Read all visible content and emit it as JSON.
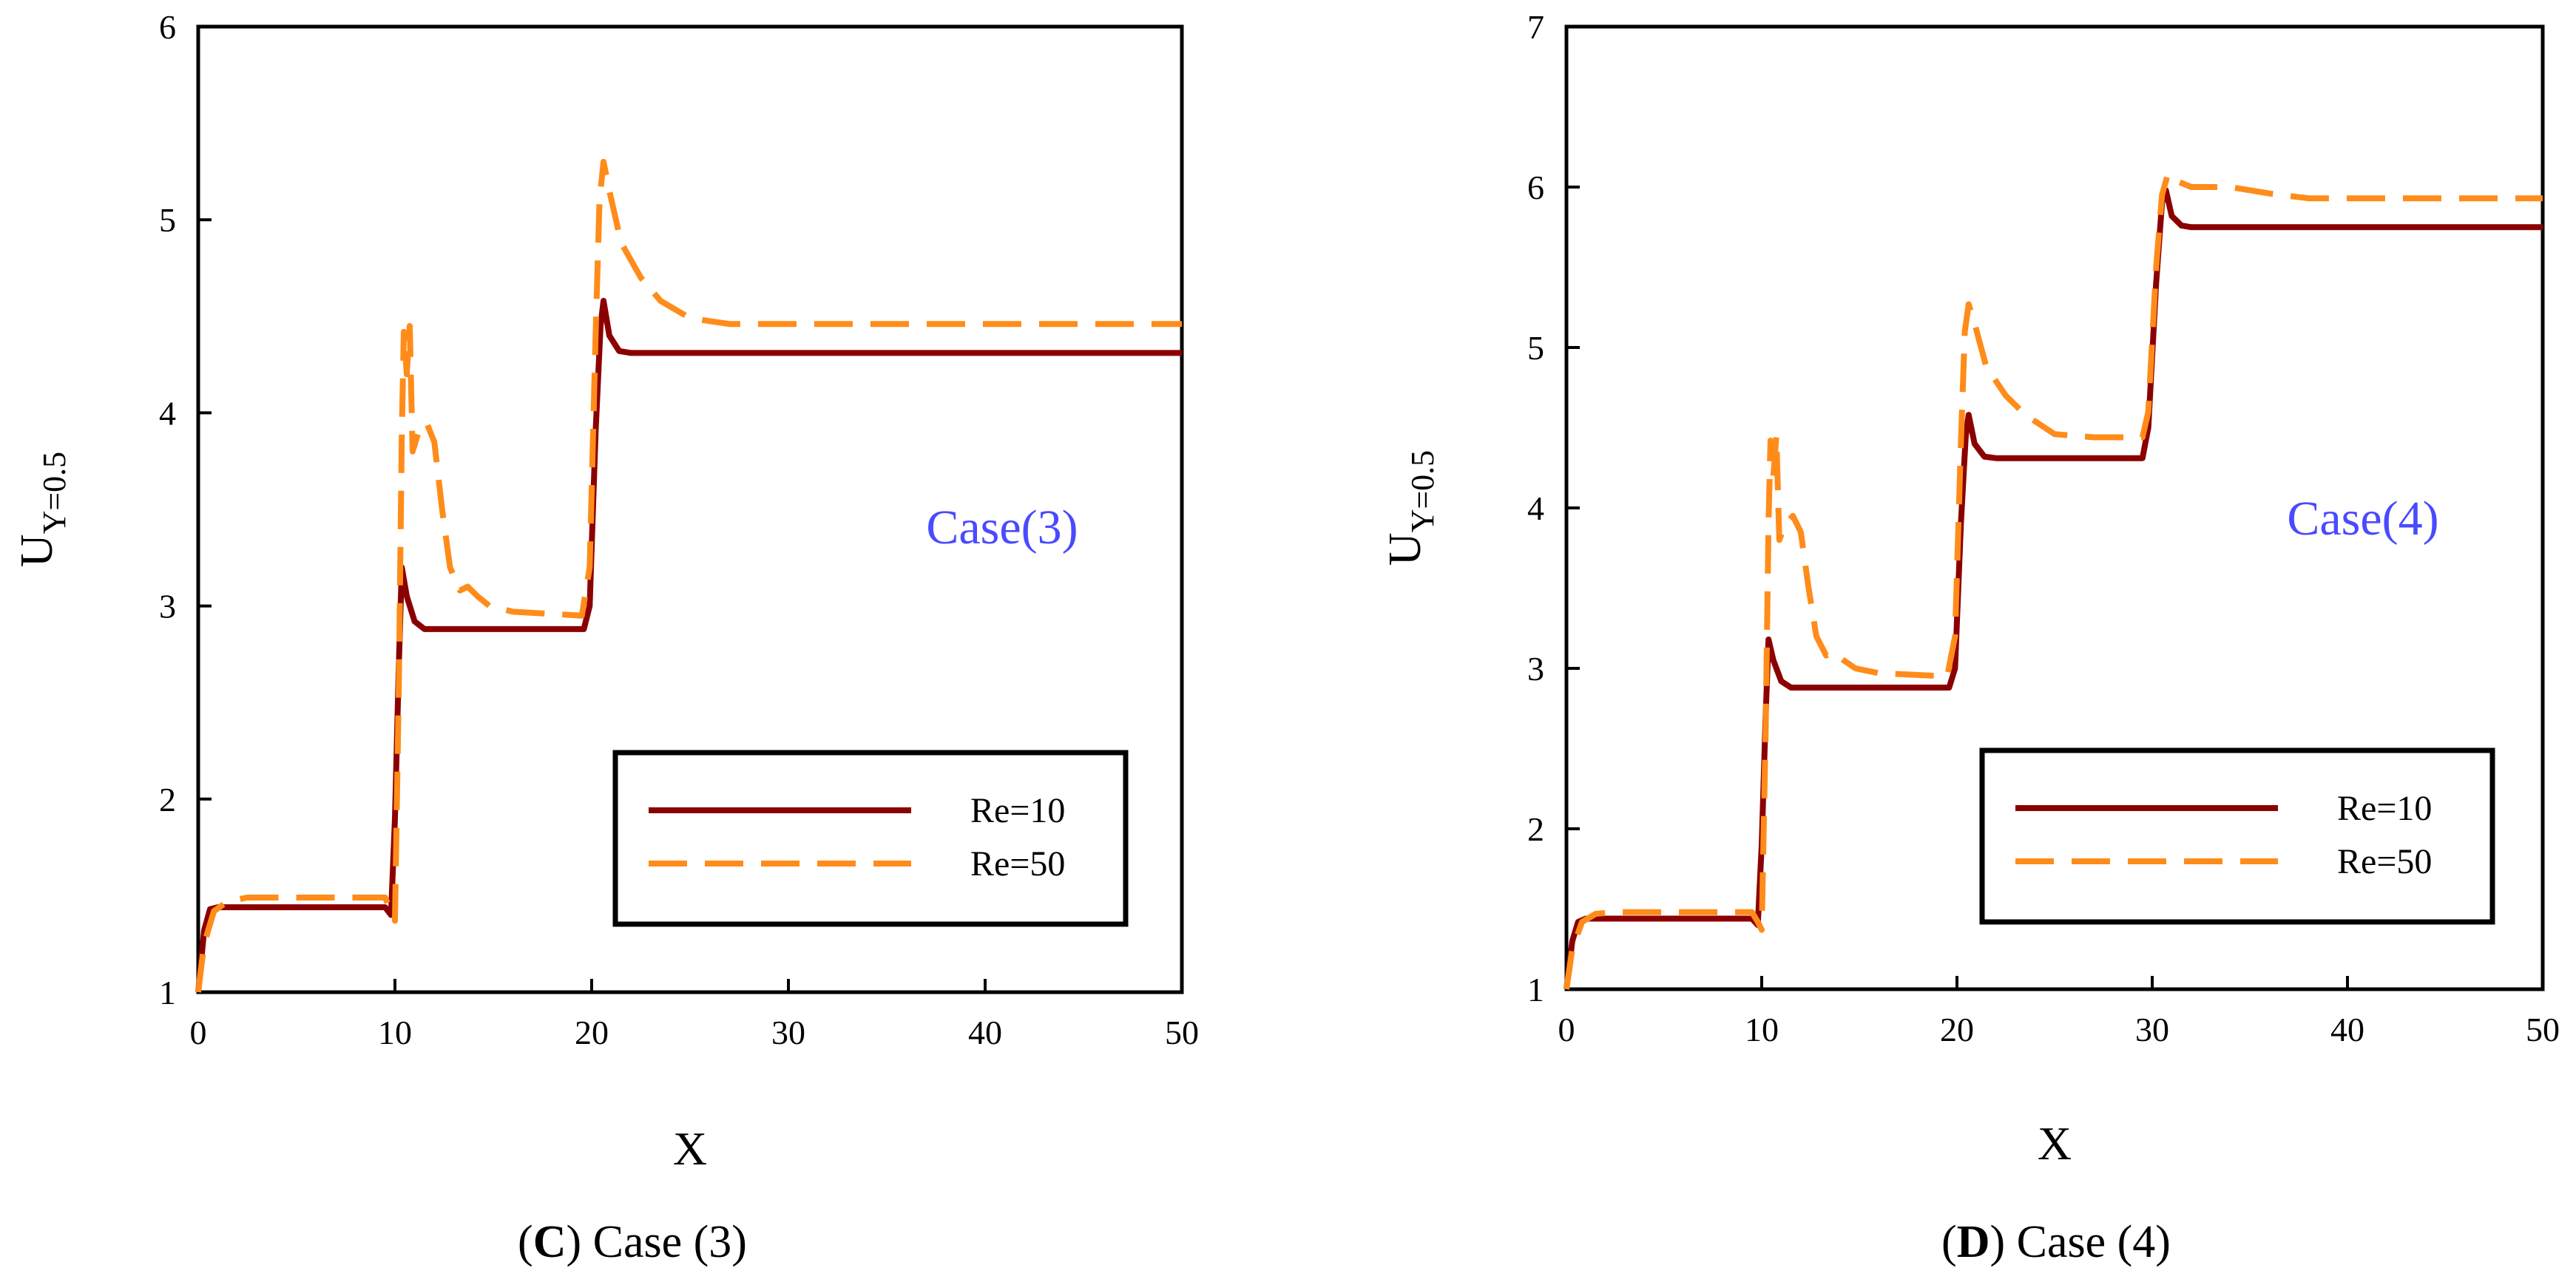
{
  "colors": {
    "re10": "#8b0000",
    "re50": "#ff8c1a",
    "annotation": "#4a4aff"
  },
  "chart_data": [
    {
      "type": "line",
      "title": "",
      "caption": {
        "open": "(",
        "letter": "C",
        "rest": ") Case (3)"
      },
      "annotation": "Case(3)",
      "xlabel": "X",
      "ylabel": {
        "main": "U",
        "sub": "Y=0.5"
      },
      "xlim": [
        0,
        50
      ],
      "ylim": [
        1,
        6
      ],
      "xticks": [
        0,
        10,
        20,
        30,
        40,
        50
      ],
      "yticks": [
        1,
        2,
        3,
        4,
        5,
        6
      ],
      "legend": {
        "position": "lower-right"
      },
      "series": [
        {
          "name": "Re=10",
          "style": "solid",
          "color_key": "re10",
          "points": [
            [
              0,
              1.0
            ],
            [
              0.3,
              1.32
            ],
            [
              0.6,
              1.43
            ],
            [
              1.0,
              1.44
            ],
            [
              5,
              1.44
            ],
            [
              9.5,
              1.44
            ],
            [
              9.8,
              1.4
            ],
            [
              10.0,
              1.9
            ],
            [
              10.2,
              2.7
            ],
            [
              10.35,
              3.2
            ],
            [
              10.6,
              3.05
            ],
            [
              11.0,
              2.92
            ],
            [
              11.5,
              2.88
            ],
            [
              15,
              2.88
            ],
            [
              19.6,
              2.88
            ],
            [
              19.9,
              3.0
            ],
            [
              20.2,
              3.9
            ],
            [
              20.45,
              4.45
            ],
            [
              20.6,
              4.58
            ],
            [
              20.9,
              4.4
            ],
            [
              21.4,
              4.32
            ],
            [
              22,
              4.31
            ],
            [
              35,
              4.31
            ],
            [
              50,
              4.31
            ]
          ]
        },
        {
          "name": "Re=50",
          "style": "dashed",
          "color_key": "re50",
          "points": [
            [
              0,
              1.0
            ],
            [
              0.3,
              1.25
            ],
            [
              0.8,
              1.42
            ],
            [
              1.5,
              1.47
            ],
            [
              2.5,
              1.49
            ],
            [
              5,
              1.49
            ],
            [
              9.5,
              1.49
            ],
            [
              9.8,
              1.42
            ],
            [
              10.0,
              1.37
            ],
            [
              10.2,
              2.6
            ],
            [
              10.35,
              3.9
            ],
            [
              10.45,
              4.42
            ],
            [
              10.6,
              4.2
            ],
            [
              10.75,
              4.45
            ],
            [
              10.9,
              3.8
            ],
            [
              11.2,
              3.9
            ],
            [
              11.6,
              3.95
            ],
            [
              12.0,
              3.85
            ],
            [
              12.4,
              3.5
            ],
            [
              12.8,
              3.2
            ],
            [
              13.3,
              3.08
            ],
            [
              13.7,
              3.1
            ],
            [
              14.2,
              3.05
            ],
            [
              14.8,
              3.0
            ],
            [
              16,
              2.97
            ],
            [
              19.5,
              2.95
            ],
            [
              19.9,
              3.2
            ],
            [
              20.2,
              4.4
            ],
            [
              20.4,
              5.1
            ],
            [
              20.6,
              5.3
            ],
            [
              20.9,
              5.15
            ],
            [
              21.5,
              4.88
            ],
            [
              22.5,
              4.7
            ],
            [
              23.5,
              4.58
            ],
            [
              25,
              4.49
            ],
            [
              27,
              4.46
            ],
            [
              30,
              4.46
            ],
            [
              50,
              4.46
            ]
          ]
        }
      ]
    },
    {
      "type": "line",
      "title": "",
      "caption": {
        "open": "(",
        "letter": "D",
        "rest": ") Case (4)"
      },
      "annotation": "Case(4)",
      "xlabel": "X",
      "ylabel": {
        "main": "U",
        "sub": "Y=0.5"
      },
      "xlim": [
        0,
        50
      ],
      "ylim": [
        1,
        7
      ],
      "xticks": [
        0,
        10,
        20,
        30,
        40,
        50
      ],
      "yticks": [
        1,
        2,
        3,
        4,
        5,
        6,
        7
      ],
      "legend": {
        "position": "lower-right"
      },
      "series": [
        {
          "name": "Re=10",
          "style": "solid",
          "color_key": "re10",
          "points": [
            [
              0,
              1.0
            ],
            [
              0.3,
              1.3
            ],
            [
              0.6,
              1.42
            ],
            [
              1.0,
              1.44
            ],
            [
              5,
              1.44
            ],
            [
              9.5,
              1.44
            ],
            [
              9.8,
              1.4
            ],
            [
              10.0,
              1.9
            ],
            [
              10.2,
              2.7
            ],
            [
              10.35,
              3.18
            ],
            [
              10.6,
              3.05
            ],
            [
              11.0,
              2.92
            ],
            [
              11.5,
              2.88
            ],
            [
              15,
              2.88
            ],
            [
              19.6,
              2.88
            ],
            [
              19.9,
              3.0
            ],
            [
              20.2,
              3.9
            ],
            [
              20.45,
              4.45
            ],
            [
              20.6,
              4.58
            ],
            [
              20.9,
              4.4
            ],
            [
              21.4,
              4.32
            ],
            [
              22,
              4.31
            ],
            [
              29.5,
              4.31
            ],
            [
              29.8,
              4.5
            ],
            [
              30.2,
              5.4
            ],
            [
              30.5,
              5.9
            ],
            [
              30.7,
              5.98
            ],
            [
              31.0,
              5.82
            ],
            [
              31.5,
              5.76
            ],
            [
              32,
              5.75
            ],
            [
              40,
              5.75
            ],
            [
              50,
              5.75
            ]
          ]
        },
        {
          "name": "Re=50",
          "style": "dashed",
          "color_key": "re50",
          "points": [
            [
              0,
              1.0
            ],
            [
              0.3,
              1.25
            ],
            [
              0.8,
              1.42
            ],
            [
              1.5,
              1.47
            ],
            [
              2.5,
              1.48
            ],
            [
              5,
              1.48
            ],
            [
              9.5,
              1.48
            ],
            [
              9.8,
              1.42
            ],
            [
              10.0,
              1.37
            ],
            [
              10.2,
              2.6
            ],
            [
              10.35,
              3.9
            ],
            [
              10.45,
              4.42
            ],
            [
              10.6,
              4.2
            ],
            [
              10.75,
              4.45
            ],
            [
              10.9,
              3.8
            ],
            [
              11.2,
              3.9
            ],
            [
              11.6,
              3.95
            ],
            [
              12.0,
              3.85
            ],
            [
              12.4,
              3.5
            ],
            [
              12.8,
              3.2
            ],
            [
              13.3,
              3.08
            ],
            [
              13.7,
              3.1
            ],
            [
              14.2,
              3.05
            ],
            [
              14.8,
              3.0
            ],
            [
              16,
              2.97
            ],
            [
              19.5,
              2.95
            ],
            [
              19.9,
              3.2
            ],
            [
              20.2,
              4.4
            ],
            [
              20.4,
              5.1
            ],
            [
              20.6,
              5.27
            ],
            [
              20.9,
              5.15
            ],
            [
              21.5,
              4.88
            ],
            [
              22.5,
              4.7
            ],
            [
              23.5,
              4.58
            ],
            [
              25,
              4.46
            ],
            [
              27,
              4.44
            ],
            [
              29.5,
              4.44
            ],
            [
              29.8,
              4.6
            ],
            [
              30.2,
              5.5
            ],
            [
              30.5,
              5.95
            ],
            [
              30.8,
              6.08
            ],
            [
              31.2,
              6.04
            ],
            [
              32,
              6.0
            ],
            [
              34,
              6.0
            ],
            [
              36,
              5.96
            ],
            [
              38,
              5.93
            ],
            [
              42,
              5.93
            ],
            [
              50,
              5.93
            ]
          ]
        }
      ]
    }
  ]
}
